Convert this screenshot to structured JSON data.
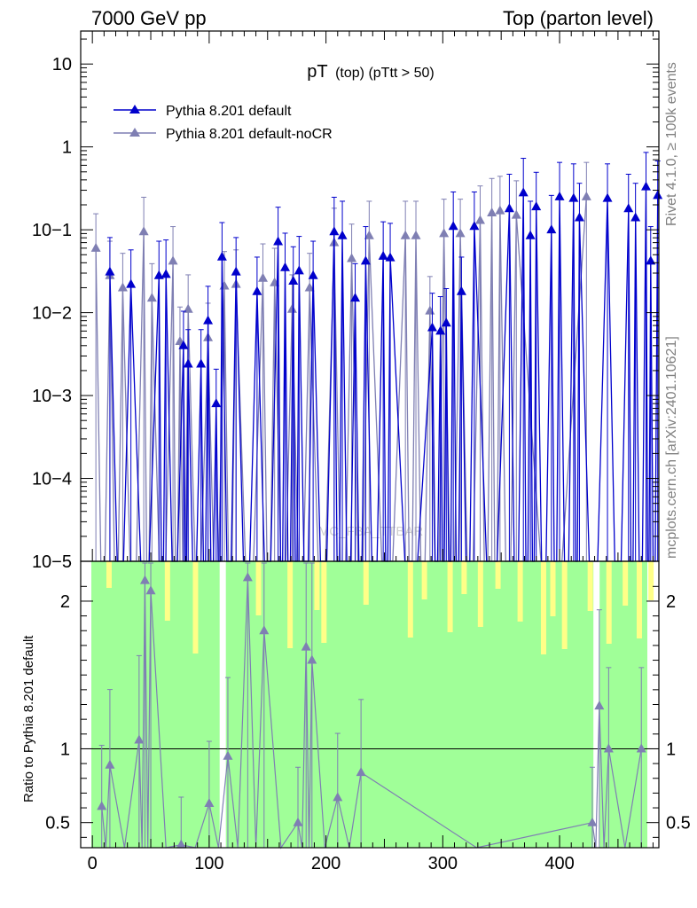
{
  "header": {
    "left": "7000 GeV pp",
    "right": "Top (parton level)"
  },
  "side_labels": {
    "rivet": "Rivet 4.1.0, ≥ 100k events",
    "mcplots": "mcplots.cern.ch [arXiv:2401.10621]"
  },
  "watermark": "MC_FBA_TTBAR",
  "chart_data": {
    "type": "line",
    "title_main": "pT",
    "title_sub": "(top) (pTtt > 50)",
    "xlim": [
      -10,
      485
    ],
    "ylim": [
      1e-05,
      25
    ],
    "yscale": "log",
    "ratio_ylabel": "Ratio to Pythia 8.201 default",
    "ratio_ylim": [
      0.33,
      2.27
    ],
    "x_ticks": [
      "0",
      "100",
      "200",
      "300",
      "400"
    ],
    "y_ticks": [
      "10",
      "1",
      "10−1",
      "10−2",
      "10−3",
      "10−4",
      "10−5"
    ],
    "ratio_ticks": [
      "2",
      "1",
      "0.5"
    ],
    "series": [
      {
        "name": "Pythia 8.201 default",
        "color": "#0000cc",
        "points": [
          [
            15,
            0.031
          ],
          [
            33,
            0.022
          ],
          [
            57,
            0.028
          ],
          [
            63,
            0.029
          ],
          [
            78,
            0.004
          ],
          [
            82,
            0.0024
          ],
          [
            93,
            0.0024
          ],
          [
            99,
            0.008
          ],
          [
            106,
            0.0008
          ],
          [
            111,
            0.047
          ],
          [
            123,
            0.031
          ],
          [
            141,
            0.018
          ],
          [
            159,
            0.072
          ],
          [
            165,
            0.035
          ],
          [
            172,
            0.024
          ],
          [
            177,
            0.032
          ],
          [
            189,
            0.028
          ],
          [
            207,
            0.095
          ],
          [
            214,
            0.085
          ],
          [
            225,
            0.015
          ],
          [
            234,
            0.042
          ],
          [
            249,
            0.048
          ],
          [
            255,
            0.046
          ],
          [
            291,
            0.0066
          ],
          [
            298,
            0.006
          ],
          [
            303,
            0.0075
          ],
          [
            309,
            0.11
          ],
          [
            316,
            0.018
          ],
          [
            327,
            0.11
          ],
          [
            357,
            0.18
          ],
          [
            369,
            0.28
          ],
          [
            375,
            0.085
          ],
          [
            380,
            0.19
          ],
          [
            393,
            0.1
          ],
          [
            400,
            0.25
          ],
          [
            412,
            0.24
          ],
          [
            417,
            0.14
          ],
          [
            441,
            0.24
          ],
          [
            459,
            0.18
          ],
          [
            465,
            0.14
          ],
          [
            474,
            0.33
          ],
          [
            478,
            0.042
          ],
          [
            484,
            0.26
          ]
        ]
      },
      {
        "name": "Pythia 8.201 default-noCR",
        "color": "#7f7fb3",
        "points": [
          [
            3,
            0.06
          ],
          [
            15,
            0.028
          ],
          [
            26,
            0.02
          ],
          [
            44,
            0.095
          ],
          [
            51,
            0.015
          ],
          [
            69,
            0.042
          ],
          [
            75,
            0.0045
          ],
          [
            82,
            0.011
          ],
          [
            99,
            0.005
          ],
          [
            113,
            0.021
          ],
          [
            123,
            0.022
          ],
          [
            146,
            0.026
          ],
          [
            156,
            0.023
          ],
          [
            171,
            0.011
          ],
          [
            186,
            0.02
          ],
          [
            207,
            0.07
          ],
          [
            222,
            0.045
          ],
          [
            237,
            0.085
          ],
          [
            268,
            0.085
          ],
          [
            277,
            0.085
          ],
          [
            289,
            0.0105
          ],
          [
            301,
            0.09
          ],
          [
            315,
            0.09
          ],
          [
            332,
            0.13
          ],
          [
            342,
            0.16
          ],
          [
            349,
            0.17
          ],
          [
            363,
            0.15
          ],
          [
            423,
            0.25
          ]
        ]
      }
    ],
    "ratio_points": [
      [
        8,
        0.61
      ],
      [
        15,
        0.89
      ],
      [
        40,
        1.06
      ],
      [
        45,
        2.14
      ],
      [
        50,
        2.07
      ],
      [
        76,
        0.35
      ],
      [
        100,
        0.63
      ],
      [
        116,
        0.95
      ],
      [
        133,
        2.16
      ],
      [
        147,
        1.8
      ],
      [
        176,
        0.5
      ],
      [
        183,
        1.69
      ],
      [
        188,
        1.6
      ],
      [
        210,
        0.67
      ],
      [
        230,
        0.84
      ],
      [
        428,
        0.5
      ],
      [
        434,
        1.29
      ],
      [
        442,
        1.0
      ],
      [
        470,
        1.0
      ]
    ]
  }
}
